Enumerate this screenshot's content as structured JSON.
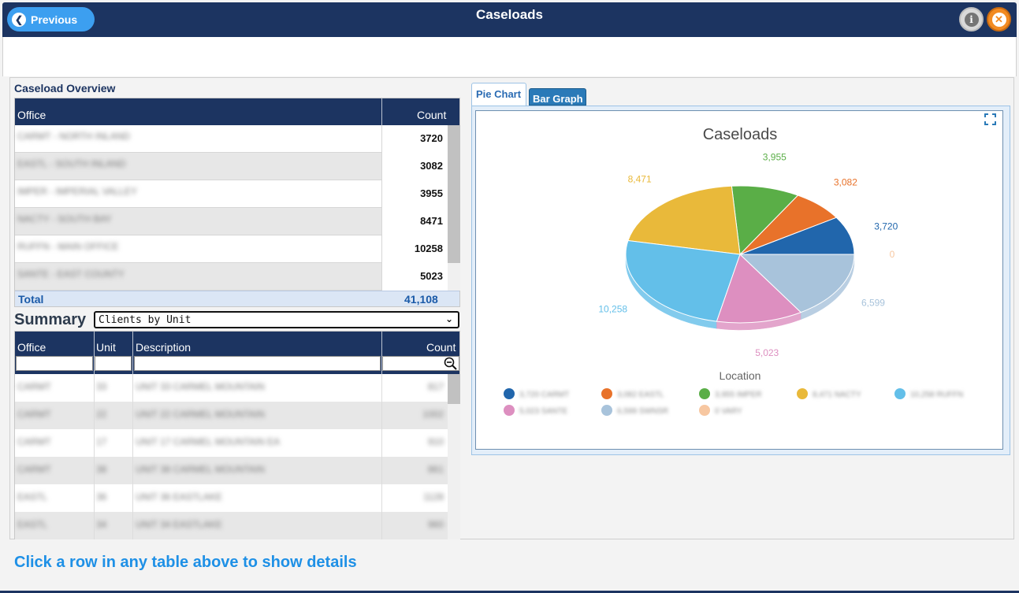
{
  "header": {
    "title": "Caseloads",
    "previous_label": "Previous",
    "info_icon": "info-icon",
    "close_icon": "close-icon"
  },
  "overview": {
    "title": "Caseload Overview",
    "columns": [
      "Office",
      "Count"
    ],
    "rows": [
      {
        "office": "CARMT - NORTH INLAND",
        "count": "3720"
      },
      {
        "office": "EASTL - SOUTH INLAND",
        "count": "3082"
      },
      {
        "office": "IMPER - IMPERIAL VALLEY",
        "count": "3955"
      },
      {
        "office": "NACTY - SOUTH BAY",
        "count": "8471"
      },
      {
        "office": "RUFFN - MAIN OFFICE",
        "count": "10258"
      },
      {
        "office": "SANTE - EAST COUNTY",
        "count": "5023"
      }
    ],
    "total_label": "Total",
    "total_value": "41,108"
  },
  "summary": {
    "label": "Summary",
    "select_value": "Clients by Unit",
    "columns": [
      "Office",
      "Unit",
      "Description",
      "Count"
    ],
    "rows": [
      {
        "office": "CARMT",
        "unit": "33",
        "description": "UNIT 33 CARMEL MOUNTAIN",
        "count": "817"
      },
      {
        "office": "CARMT",
        "unit": "22",
        "description": "UNIT 22 CARMEL MOUNTAIN",
        "count": "1002"
      },
      {
        "office": "CARMT",
        "unit": "17",
        "description": "UNIT 17 CARMEL MOUNTAIN EA",
        "count": "910"
      },
      {
        "office": "CARMT",
        "unit": "38",
        "description": "UNIT 38 CARMEL MOUNTAIN",
        "count": "861"
      },
      {
        "office": "EASTL",
        "unit": "36",
        "description": "UNIT 36 EASTLAKE",
        "count": "1128"
      },
      {
        "office": "EASTL",
        "unit": "34",
        "description": "UNIT 34 EASTLAKE",
        "count": "960"
      }
    ]
  },
  "tabs": {
    "pie": "Pie Chart",
    "bar": "Bar Graph"
  },
  "chart_data": {
    "type": "pie",
    "title": "Caseloads",
    "legend_title": "Location",
    "legend_position": "bottom",
    "slices": [
      {
        "label": "3,720",
        "legend": "3,720 CARMT",
        "value": 3720,
        "color": "#2166ac"
      },
      {
        "label": "3,082",
        "legend": "3,082 EASTL",
        "value": 3082,
        "color": "#e8722a"
      },
      {
        "label": "3,955",
        "legend": "3,955 IMPER",
        "value": 3955,
        "color": "#5aae47"
      },
      {
        "label": "8,471",
        "legend": "8,471 NACTY",
        "value": 8471,
        "color": "#e9b93a"
      },
      {
        "label": "10,258",
        "legend": "10,258 RUFFN",
        "value": 10258,
        "color": "#63bfe9"
      },
      {
        "label": "5,023",
        "legend": "5,023 SANTE",
        "value": 5023,
        "color": "#dd8fc0"
      },
      {
        "label": "6,599",
        "legend": "6,599 SWNSR",
        "value": 6599,
        "color": "#a8c3db"
      },
      {
        "label": "0",
        "legend": "0 VARY",
        "value": 0,
        "color": "#f7c7a1"
      }
    ]
  },
  "footer": {
    "hint": "Click a row in any table above to show details"
  }
}
